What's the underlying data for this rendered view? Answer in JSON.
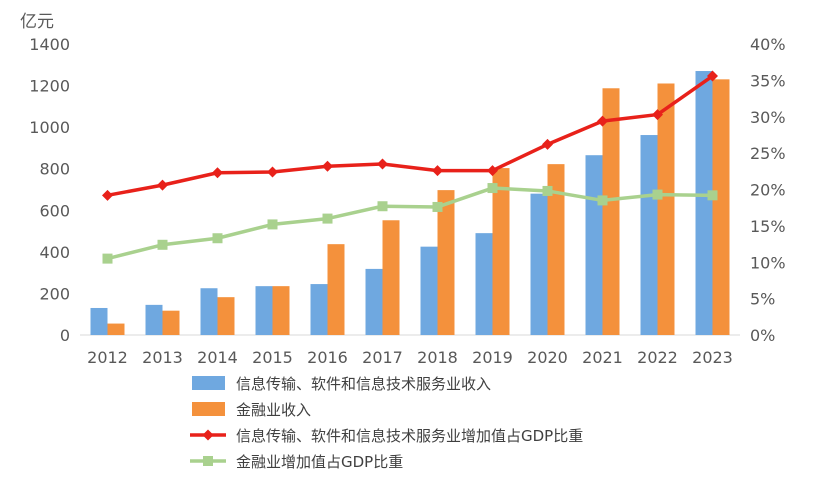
{
  "chart_data": {
    "type": "bar",
    "categories": [
      "2012",
      "2013",
      "2014",
      "2015",
      "2016",
      "2017",
      "2018",
      "2019",
      "2020",
      "2021",
      "2022",
      "2023"
    ],
    "left_axis": {
      "unit_label": "亿元",
      "ylim": [
        0,
        1400
      ],
      "ticks": [
        "0",
        "200",
        "400",
        "600",
        "800",
        "1000",
        "1200",
        "1400"
      ]
    },
    "right_axis": {
      "ylim": [
        0,
        40
      ],
      "ticks": [
        "0%",
        "5%",
        "10%",
        "15%",
        "20%",
        "25%",
        "30%",
        "35%",
        "40%"
      ]
    },
    "series": [
      {
        "name": "信息传输、软件和信息技术服务业收入",
        "type": "bar",
        "axis": "left",
        "color": "#6FA8E0",
        "values": [
          130,
          145,
          225,
          235,
          245,
          318,
          425,
          490,
          680,
          865,
          962,
          1270
        ]
      },
      {
        "name": "金融业收入",
        "type": "bar",
        "axis": "left",
        "color": "#F4913C",
        "values": [
          55,
          117,
          182,
          235,
          437,
          552,
          697,
          803,
          822,
          1187,
          1210,
          1230
        ]
      },
      {
        "name": "信息传输、软件和信息技术服务业增加值占GDP比重",
        "type": "line",
        "axis": "right",
        "color": "#E8211A",
        "marker": "diamond",
        "values": [
          19.2,
          20.6,
          22.3,
          22.4,
          23.2,
          23.5,
          22.6,
          22.6,
          26.2,
          29.4,
          30.3,
          35.6
        ]
      },
      {
        "name": "金融业增加值占GDP比重",
        "type": "line",
        "axis": "right",
        "color": "#A9D18E",
        "marker": "square",
        "values": [
          10.5,
          12.4,
          13.3,
          15.2,
          16.0,
          17.7,
          17.6,
          20.2,
          19.8,
          18.5,
          19.3,
          19.2
        ]
      }
    ],
    "grid": false,
    "legend_position": "bottom"
  }
}
